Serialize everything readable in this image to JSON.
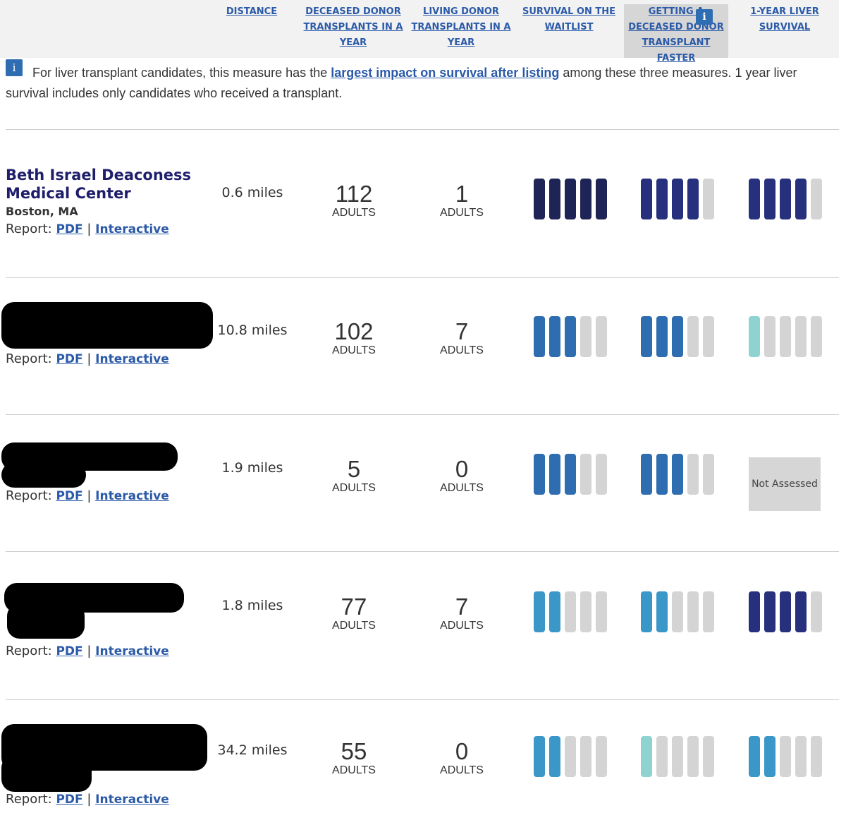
{
  "header": {
    "columns": [
      {
        "label": "DISTANCE",
        "lines": [
          "DISTANCE"
        ]
      },
      {
        "label": "DECEASED DONOR TRANSPLANTS IN A YEAR",
        "lines": [
          "DECEASED DONOR",
          "TRANSPLANTS IN A",
          "YEAR"
        ]
      },
      {
        "label": "LIVING DONOR TRANSPLANTS IN A YEAR",
        "lines": [
          "LIVING DONOR",
          "TRANSPLANTS IN A",
          "YEAR"
        ]
      },
      {
        "label": "SURVIVAL ON THE WAITLIST",
        "lines": [
          "SURVIVAL ON THE",
          "WAITLIST"
        ]
      },
      {
        "label": "GETTING A DECEASED DONOR TRANSPLANT FASTER",
        "lines": [
          "GETTING A",
          "DECEASED DONOR",
          "TRANSPLANT FASTER"
        ],
        "selected": true
      },
      {
        "label": "1-YEAR LIVER SURVIVAL",
        "lines": [
          "1-YEAR LIVER",
          "SURVIVAL"
        ]
      }
    ],
    "info_icon": "i"
  },
  "note": {
    "info_icon": "i",
    "before": "For liver transplant candidates, this measure has the ",
    "link": "largest impact on survival after listing",
    "after": " among these three measures. 1 year liver survival includes only candidates who received a transplant."
  },
  "colors": {
    "darkest": "#1f2456",
    "dark": "#26307c",
    "mid": "#2e6db0",
    "light": "#3c97c9",
    "teal": "#8fd3d0",
    "empty": "#d4d4d4"
  },
  "report_label": "Report:",
  "pdf_label": "PDF",
  "sep": "|",
  "interactive_label": "Interactive",
  "adults_label": "ADULTS",
  "not_assessed": "Not Assessed",
  "rows": [
    {
      "name": "Beth Israel Deaconess Medical Center",
      "name_lines": [
        "Beth Israel Deaconess",
        "Medical Center"
      ],
      "city": "Boston, MA",
      "distance": "0.6 miles",
      "deceased": "112",
      "living": "1",
      "waitlist": {
        "filled": 5,
        "color": "darkest"
      },
      "faster": {
        "filled": 4,
        "color": "dark"
      },
      "survival": {
        "filled": 4,
        "color": "dark"
      }
    },
    {
      "name": "",
      "city": "",
      "distance": "10.8 miles",
      "deceased": "102",
      "living": "7",
      "waitlist": {
        "filled": 3,
        "color": "mid"
      },
      "faster": {
        "filled": 3,
        "color": "mid"
      },
      "survival": {
        "filled": 1,
        "color": "teal"
      }
    },
    {
      "name": "",
      "city": "",
      "distance": "1.9 miles",
      "deceased": "5",
      "living": "0",
      "waitlist": {
        "filled": 3,
        "color": "mid"
      },
      "faster": {
        "filled": 3,
        "color": "mid"
      },
      "survival": null
    },
    {
      "name": "",
      "city": "",
      "distance": "1.8 miles",
      "deceased": "77",
      "living": "7",
      "waitlist": {
        "filled": 2,
        "color": "light"
      },
      "faster": {
        "filled": 2,
        "color": "light"
      },
      "survival": {
        "filled": 4,
        "color": "dark"
      }
    },
    {
      "name": "",
      "city": "",
      "distance": "34.2 miles",
      "deceased": "55",
      "living": "0",
      "waitlist": {
        "filled": 2,
        "color": "light"
      },
      "faster": {
        "filled": 1,
        "color": "teal"
      },
      "survival": {
        "filled": 2,
        "color": "light"
      }
    }
  ]
}
